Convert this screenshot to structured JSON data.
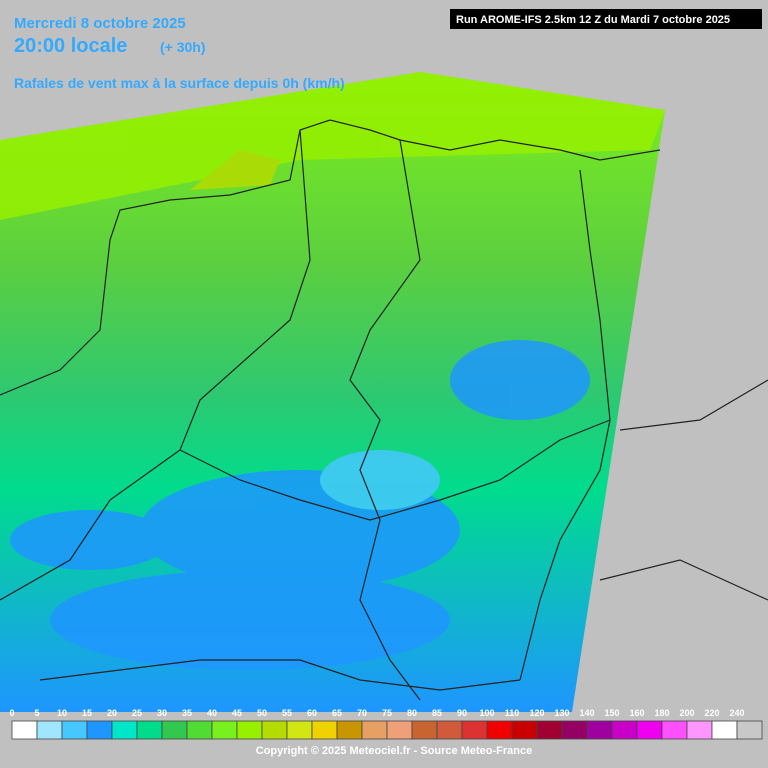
{
  "header": {
    "date": "Mercredi 8 octobre 2025",
    "time": "20:00 locale",
    "offset": "(+ 30h)",
    "parameter": "Rafales de vent max à la surface depuis 0h (km/h)",
    "run": "Run AROME-IFS 2.5km 12 Z du Mardi 7 octobre 2025"
  },
  "legend": {
    "values": [
      0,
      5,
      10,
      15,
      20,
      25,
      30,
      35,
      40,
      45,
      50,
      55,
      60,
      65,
      70,
      75,
      80,
      85,
      90,
      100,
      110,
      120,
      130,
      140,
      150,
      160,
      180,
      200,
      220,
      240
    ],
    "colors": [
      "#ffffff",
      "#a0e6ff",
      "#46c8ff",
      "#1e96ff",
      "#00e6c8",
      "#00dc8c",
      "#32c850",
      "#50dc32",
      "#78f01e",
      "#96f000",
      "#b4dc00",
      "#d2e614",
      "#f0d200",
      "#c89600",
      "#e6a064",
      "#f0a078",
      "#c86432",
      "#d25a3c",
      "#dc3232",
      "#f00000",
      "#c80000",
      "#a00032",
      "#960064",
      "#a000a0",
      "#c800c8",
      "#f000f0",
      "#ff50ff",
      "#ff96ff",
      "#ffffff",
      "#c8c8c8"
    ]
  },
  "footer": {
    "copyright": "Copyright © 2025 Meteociel.fr - Source Meteo-France"
  }
}
